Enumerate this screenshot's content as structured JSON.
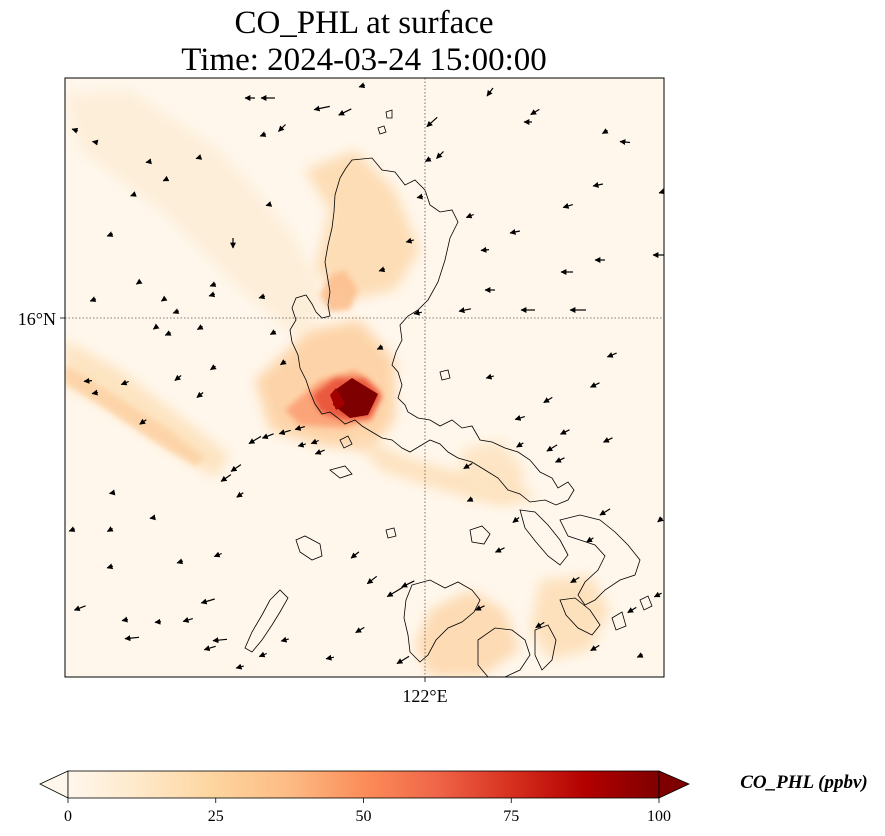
{
  "chart_data": {
    "type": "heatmap",
    "title_line1": "CO_PHL at surface",
    "title_line2": "Time: 2024-03-24 15:00:00",
    "x_tick_labels": [
      "122°E"
    ],
    "y_tick_labels": [
      "16°N"
    ],
    "gridlines": "dotted",
    "colorbar": {
      "label": "CO_PHL (ppbv)",
      "tick_labels": [
        "0",
        "25",
        "50",
        "75",
        "100"
      ],
      "ticks": [
        0,
        25,
        50,
        75,
        100
      ],
      "range": [
        0,
        100
      ],
      "extend": "both",
      "colormap": "OrRd",
      "colors": [
        "#fff7ec",
        "#fee8c8",
        "#fdd49e",
        "#fdbb84",
        "#fc8d59",
        "#ef6548",
        "#d7301f",
        "#b30000",
        "#7f0000"
      ],
      "orientation": "horizontal",
      "position": "bottom"
    },
    "plumes": [
      {
        "description": "hotspot near Manila Bay",
        "peak_value": 100
      },
      {
        "description": "band over central Luzon",
        "peak_value": 30
      },
      {
        "description": "northern Luzon band",
        "peak_value": 25
      },
      {
        "description": "offshore streak west of Luzon",
        "peak_value": 15
      },
      {
        "description": "southeastern Luzon patches",
        "peak_value": 15
      }
    ],
    "wind_vectors": "easterly to northeasterly flow shown as black arrows"
  }
}
